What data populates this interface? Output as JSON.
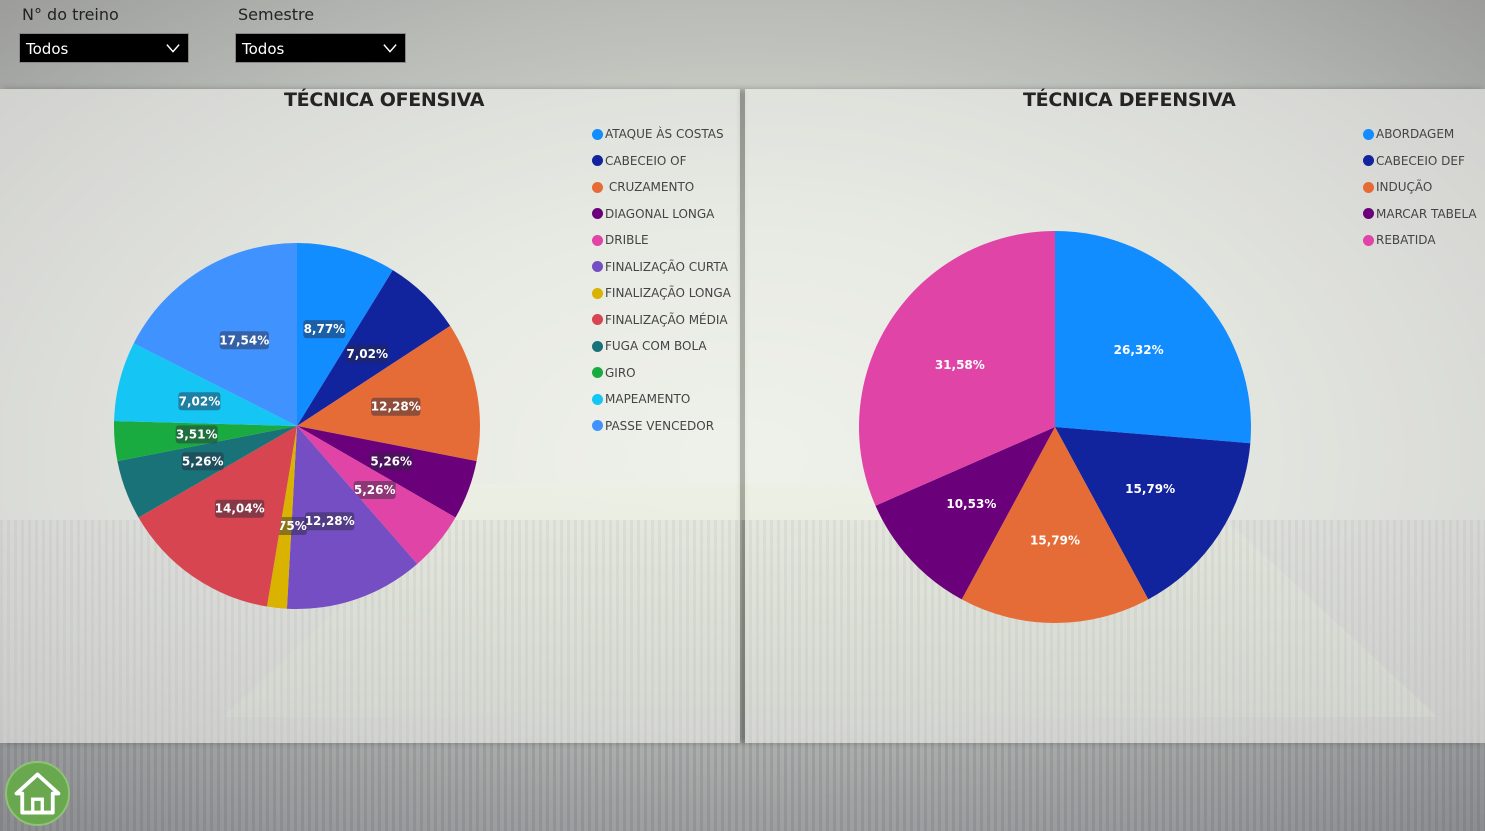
{
  "filters": [
    {
      "label": "N° do treino",
      "value": "Todos"
    },
    {
      "label": "Semestre",
      "value": "Todos"
    }
  ],
  "chart_data": [
    {
      "type": "pie",
      "title": "TÉCNICA OFENSIVA",
      "categories": [
        "ATAQUE ÀS COSTAS",
        "CABECEIO OF",
        "CRUZAMENTO",
        "DIAGONAL LONGA",
        "DRIBLE",
        "FINALIZAÇÃO CURTA",
        "FINALIZAÇÃO LONGA",
        "FINALIZAÇÃO MÉDIA",
        "FUGA COM BOLA",
        "GIRO",
        "MAPEAMENTO",
        "PASSE VENCEDOR"
      ],
      "legend_labels": [
        "ATAQUE ÀS COSTAS",
        "CABECEIO OF",
        " CRUZAMENTO",
        "DIAGONAL LONGA",
        "DRIBLE",
        "FINALIZAÇÃO CURTA",
        "FINALIZAÇÃO LONGA",
        "FINALIZAÇÃO MÉDIA",
        "FUGA COM BOLA",
        "GIRO",
        "MAPEAMENTO",
        "PASSE VENCEDOR"
      ],
      "values": [
        8.77,
        7.02,
        12.28,
        5.26,
        5.26,
        12.28,
        1.75,
        14.04,
        5.26,
        3.51,
        7.02,
        17.54
      ],
      "labels": [
        "8,77%",
        "7,02%",
        "12,28%",
        "5,26%",
        "5,26%",
        "12,28%",
        "1,75%",
        "14,04%",
        "5,26%",
        "3,51%",
        "7,02%",
        "17,54%"
      ],
      "colors": [
        "#118DFF",
        "#12239E",
        "#E66C37",
        "#6B007B",
        "#E044A7",
        "#744EC2",
        "#D9B300",
        "#D64550",
        "#197278",
        "#1AAB40",
        "#15C6F4",
        "#4092FF"
      ],
      "legend_position": "right"
    },
    {
      "type": "pie",
      "title": "TÉCNICA DEFENSIVA",
      "categories": [
        "ABORDAGEM",
        "CABECEIO DEF",
        "INDUÇÃO",
        "MARCAR TABELA",
        "REBATIDA"
      ],
      "legend_labels": [
        "ABORDAGEM",
        "CABECEIO DEF",
        "INDUÇÃO",
        "MARCAR TABELA",
        "REBATIDA"
      ],
      "values": [
        26.32,
        15.79,
        15.79,
        10.53,
        31.58
      ],
      "labels": [
        "26,32%",
        "15,79%",
        "15,79%",
        "10,53%",
        "31,58%"
      ],
      "colors": [
        "#118DFF",
        "#12239E",
        "#E66C37",
        "#6B007B",
        "#E044A7"
      ],
      "legend_position": "right"
    }
  ],
  "icons": {
    "dropdown": "chevron-down-icon",
    "home": "home-icon"
  }
}
